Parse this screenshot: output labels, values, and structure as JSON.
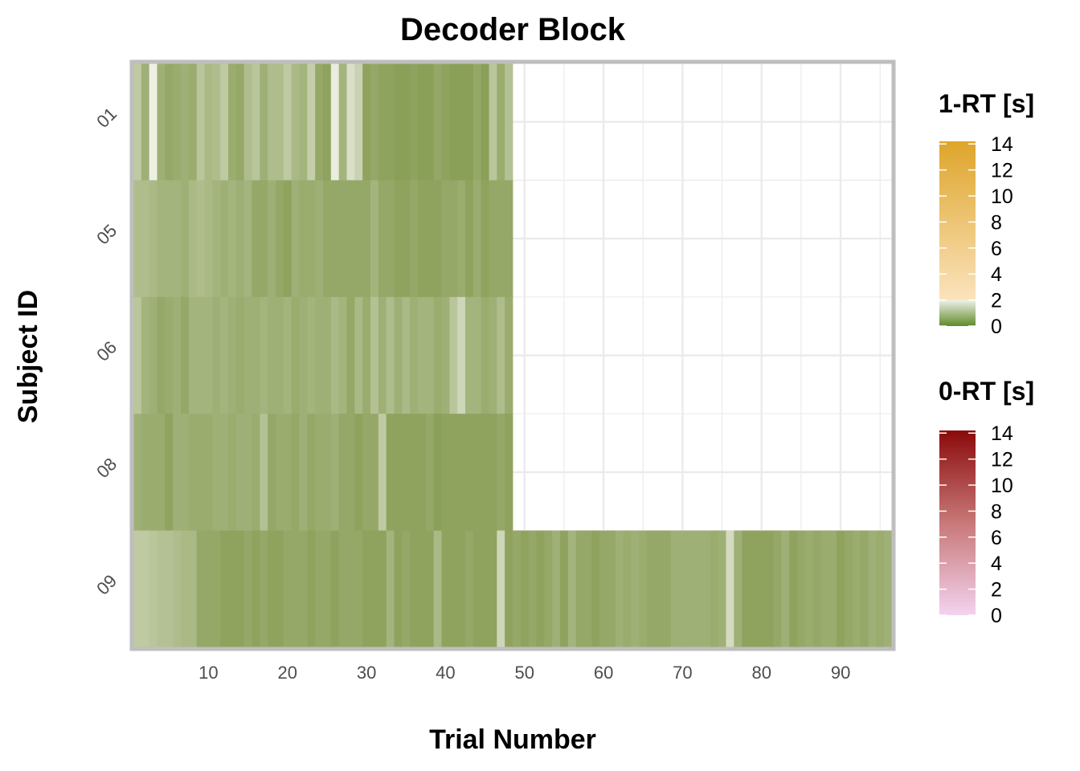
{
  "chart_data": {
    "type": "heatmap",
    "title": "Decoder Block",
    "xlabel": "Trial Number",
    "ylabel": "Subject ID",
    "x_range": [
      1,
      96
    ],
    "x_ticks": [
      10,
      20,
      30,
      40,
      50,
      60,
      70,
      80,
      90
    ],
    "y_categories": [
      "01",
      "05",
      "06",
      "08",
      "09"
    ],
    "grid": true,
    "legend_position": "right",
    "colors": {
      "zero_rt_low": "#ecc8e8",
      "zero_rt_high": "#8b0a0a",
      "one_rt_green_low": "#5f8a2a",
      "one_rt_green_high": "#eef0e6",
      "one_rt_gold_low": "#fbe3bd",
      "one_rt_gold_high": "#dea52a",
      "panel_border": "#bebebe",
      "grid": "#ebebeb"
    },
    "legends": [
      {
        "title": "1-RT [s]",
        "ticks": [
          0,
          2,
          4,
          6,
          8,
          10,
          12,
          14
        ],
        "range": [
          0,
          14.2
        ]
      },
      {
        "title": "0-RT [s]",
        "ticks": [
          0,
          2,
          4,
          6,
          8,
          10,
          12,
          14
        ],
        "range": [
          0,
          14.2
        ]
      }
    ],
    "series": [
      {
        "name": "01",
        "values": [
          1.4,
          0.8,
          2.3,
          0.8,
          0.6,
          0.7,
          0.8,
          0.7,
          1.3,
          1.0,
          1.1,
          1.4,
          0.7,
          0.6,
          1.1,
          1.3,
          0.8,
          1.1,
          1.1,
          1.4,
          1.0,
          0.9,
          1.5,
          0.6,
          0.5,
          2.2,
          0.9,
          1.9,
          1.6,
          0.5,
          0.6,
          0.5,
          0.5,
          0.4,
          0.4,
          0.5,
          0.4,
          0.4,
          0.6,
          0.5,
          0.4,
          0.4,
          0.4,
          0.6,
          0.4,
          1.3,
          0.7,
          1.2
        ]
      },
      {
        "name": "05",
        "values": [
          1.1,
          1.1,
          1.0,
          0.9,
          0.9,
          0.9,
          0.8,
          1.0,
          1.1,
          1.0,
          0.9,
          0.8,
          0.9,
          0.8,
          0.9,
          0.6,
          0.6,
          0.8,
          0.6,
          0.5,
          0.8,
          0.7,
          0.7,
          0.8,
          0.6,
          0.6,
          0.6,
          0.6,
          0.6,
          0.6,
          0.9,
          0.6,
          0.6,
          0.5,
          0.5,
          0.6,
          0.5,
          0.5,
          0.5,
          0.6,
          0.6,
          0.7,
          0.5,
          0.7,
          0.5,
          0.6,
          0.6,
          0.6
        ]
      },
      {
        "name": "06",
        "values": [
          1.3,
          0.9,
          0.8,
          0.6,
          0.7,
          0.8,
          0.6,
          0.9,
          0.9,
          0.9,
          0.8,
          0.9,
          0.8,
          0.7,
          0.8,
          0.8,
          0.9,
          0.8,
          0.8,
          0.9,
          0.7,
          0.8,
          0.9,
          0.8,
          0.8,
          1.0,
          0.9,
          0.6,
          1.0,
          0.7,
          1.2,
          0.8,
          1.1,
          0.8,
          1.0,
          0.8,
          0.9,
          0.9,
          0.7,
          0.8,
          1.3,
          1.7,
          0.9,
          0.9,
          0.7,
          0.8,
          1.1,
          0.7
        ]
      },
      {
        "name": "08",
        "values": [
          0.8,
          0.7,
          0.7,
          0.7,
          0.5,
          0.8,
          0.8,
          0.7,
          0.7,
          0.7,
          0.8,
          0.8,
          0.7,
          0.8,
          0.8,
          0.7,
          1.2,
          0.6,
          0.7,
          0.7,
          0.6,
          0.8,
          0.6,
          0.7,
          0.7,
          0.8,
          0.6,
          0.6,
          0.5,
          0.6,
          0.6,
          1.4,
          0.5,
          0.5,
          0.5,
          0.5,
          0.5,
          0.6,
          0.4,
          0.5,
          0.5,
          0.5,
          0.5,
          0.5,
          0.5,
          0.5,
          0.6,
          0.5
        ]
      },
      {
        "name": "09",
        "values": [
          1.4,
          1.4,
          1.3,
          1.2,
          1.2,
          1.1,
          1.0,
          1.0,
          0.6,
          0.6,
          0.6,
          0.5,
          0.5,
          0.5,
          0.6,
          0.5,
          0.6,
          0.5,
          0.5,
          0.6,
          0.6,
          0.6,
          0.5,
          0.6,
          0.6,
          0.5,
          0.6,
          0.6,
          0.6,
          0.5,
          0.5,
          0.5,
          0.9,
          0.5,
          0.6,
          0.5,
          0.5,
          0.5,
          1.0,
          0.5,
          0.5,
          0.5,
          0.6,
          0.5,
          0.5,
          0.5,
          1.7,
          0.5,
          0.6,
          0.5,
          0.6,
          0.5,
          0.6,
          0.8,
          0.5,
          0.9,
          0.6,
          0.6,
          0.5,
          0.6,
          0.6,
          0.8,
          0.7,
          0.8,
          0.7,
          0.6,
          0.6,
          0.6,
          0.8,
          0.8,
          0.8,
          0.8,
          0.8,
          0.7,
          0.8,
          1.8,
          0.8,
          0.5,
          0.5,
          0.5,
          0.5,
          0.6,
          0.8,
          0.5,
          0.6,
          0.7,
          0.6,
          0.7,
          0.7,
          0.5,
          0.6,
          0.7,
          0.6,
          0.8,
          0.7,
          0.8
        ]
      }
    ]
  }
}
